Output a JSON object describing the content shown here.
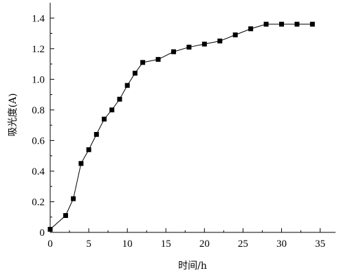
{
  "chart_data": {
    "type": "line",
    "title": "",
    "xlabel": "时间/h",
    "ylabel": "吸光度(A)",
    "xlim": [
      0,
      37
    ],
    "ylim": [
      0,
      1.5
    ],
    "x_ticks": [
      0,
      5,
      10,
      15,
      20,
      25,
      30,
      35
    ],
    "x_tick_labels": [
      "0",
      "5",
      "10",
      "15",
      "20",
      "25",
      "30",
      "35"
    ],
    "y_ticks": [
      0,
      0.2,
      0.4,
      0.6,
      0.8,
      1.0,
      1.2,
      1.4
    ],
    "y_tick_labels": [
      "0",
      "0.2",
      "0.4",
      "0.6",
      "0.8",
      "1.0",
      "1.2",
      "1.4"
    ],
    "grid": false,
    "legend": "none",
    "marker": "square",
    "color": "#000000",
    "series": [
      {
        "x": [
          0,
          2,
          3,
          4,
          5,
          6,
          7,
          8,
          9,
          10,
          11,
          12,
          14,
          16,
          18,
          20,
          22,
          24,
          26,
          28,
          30,
          32,
          34
        ],
        "y": [
          0.02,
          0.11,
          0.22,
          0.45,
          0.54,
          0.64,
          0.74,
          0.8,
          0.87,
          0.96,
          1.04,
          1.11,
          1.13,
          1.18,
          1.21,
          1.23,
          1.25,
          1.29,
          1.33,
          1.36,
          1.36,
          1.36,
          1.36
        ]
      }
    ]
  }
}
